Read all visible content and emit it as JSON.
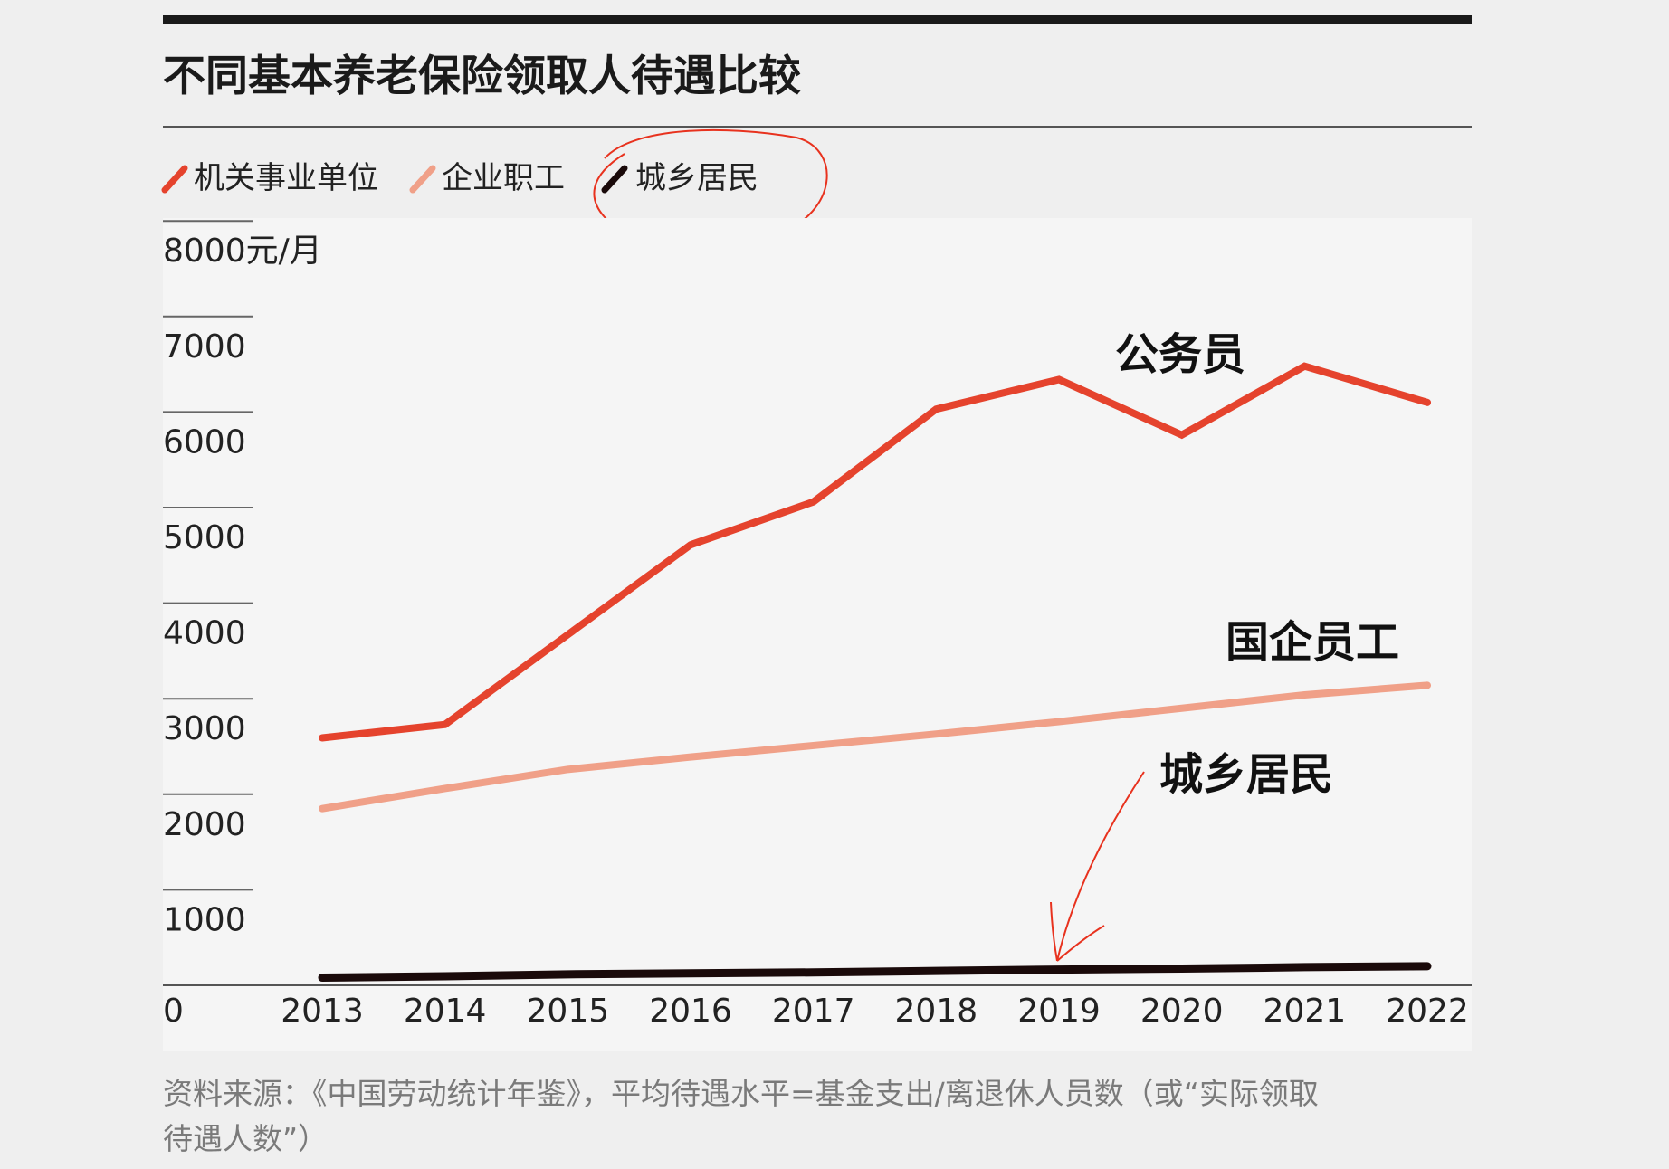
{
  "title": "不同基本养老保险领取人待遇比较",
  "footer": {
    "line1": "资料来源：《中国劳动统计年鉴》，平均待遇水平=基金支出/离退休人员数（或“实际领取",
    "line2": "待遇人数”）"
  },
  "annotations": {
    "civil_servant": "公务员",
    "soe_staff": "国企员工",
    "urban_rural": "城乡居民"
  },
  "chart_data": {
    "type": "line",
    "title": "不同基本养老保险领取人待遇比较",
    "ylabel": "元/月",
    "y_top_label": "8000元/月",
    "ylim": [
      0,
      8000
    ],
    "yticks": [
      "0",
      "1000",
      "2000",
      "3000",
      "4000",
      "5000",
      "6000",
      "7000",
      "8000元/月"
    ],
    "x": [
      "2013",
      "2014",
      "2015",
      "2016",
      "2017",
      "2018",
      "2019",
      "2020",
      "2021",
      "2022"
    ],
    "legend_position": "top-left",
    "grid": false,
    "series": [
      {
        "name": "机关事业单位",
        "color": "#e5432d",
        "values": [
          2590,
          2730,
          3670,
          4610,
          5060,
          6030,
          6340,
          5760,
          6480,
          6100
        ]
      },
      {
        "name": "企业职工",
        "color": "#f0a088",
        "values": [
          1850,
          2060,
          2260,
          2390,
          2510,
          2630,
          2760,
          2900,
          3040,
          3140
        ]
      },
      {
        "name": "城乡居民",
        "color": "#1a0a0a",
        "values": [
          80,
          95,
          115,
          125,
          135,
          150,
          165,
          175,
          190,
          200
        ]
      }
    ]
  }
}
